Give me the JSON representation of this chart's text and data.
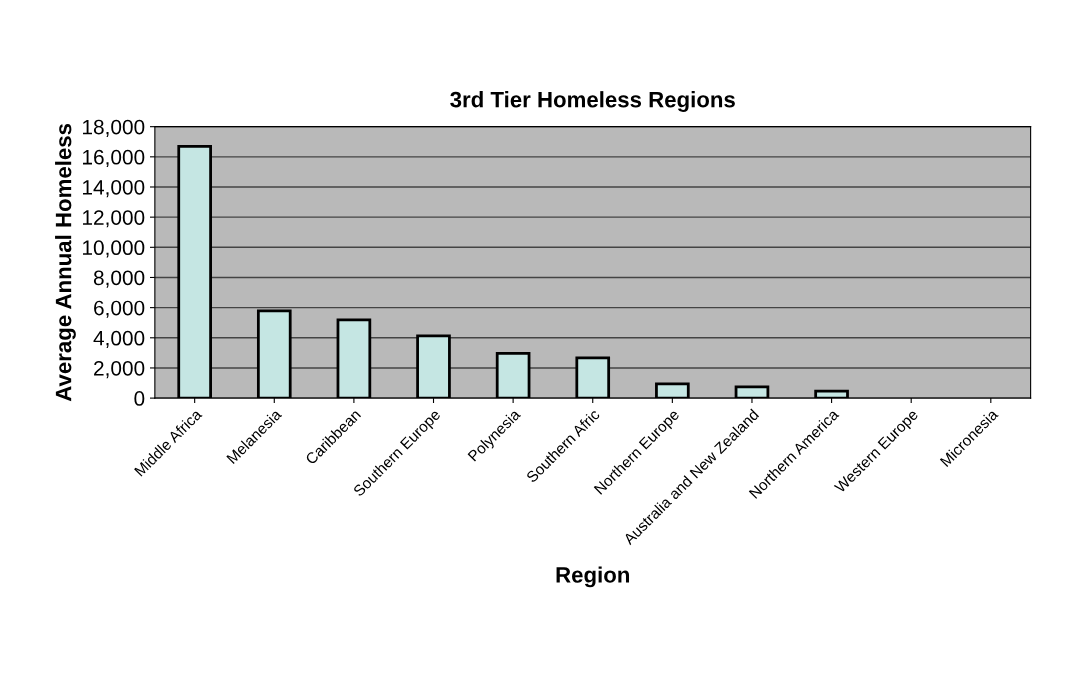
{
  "chart_data": {
    "type": "bar",
    "title": "3rd Tier Homeless Regions",
    "xlabel": "Region",
    "ylabel": "Average Annual Homeless",
    "categories": [
      "Middle Africa",
      "Melanesia",
      "Caribbean",
      "Southern Europe",
      "Polynesia",
      "Southern Afric",
      "Northern Europe",
      "Australia and New Zealand",
      "Northern America",
      "Western Europe",
      "Micronesia"
    ],
    "values": [
      16700,
      5780,
      5190,
      4130,
      2970,
      2670,
      940,
      740,
      470,
      0,
      0
    ],
    "color": "#c5e6e3",
    "ylim": [
      0,
      18000
    ],
    "yticks": [
      {
        "value": 0,
        "label": "0"
      },
      {
        "value": 2000,
        "label": "2,000"
      },
      {
        "value": 4000,
        "label": "4,000"
      },
      {
        "value": 6000,
        "label": "6,000"
      },
      {
        "value": 8000,
        "label": "8,000"
      },
      {
        "value": 10000,
        "label": "10,000"
      },
      {
        "value": 12000,
        "label": "12,000"
      },
      {
        "value": 14000,
        "label": "14,000"
      },
      {
        "value": 16000,
        "label": "16,000"
      },
      {
        "value": 18000,
        "label": "18,000"
      }
    ],
    "grid": "y",
    "legend": false
  }
}
